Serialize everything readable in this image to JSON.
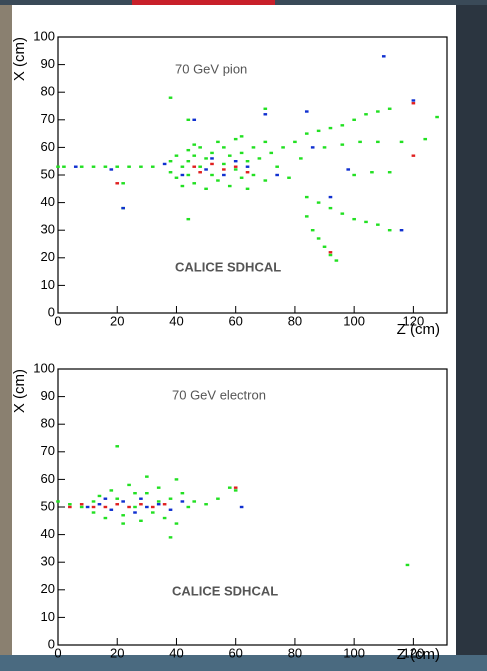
{
  "chart_data": [
    {
      "type": "scatter",
      "annotation": "70 GeV pion",
      "label": "CALICE SDHCAL",
      "xlabel": "Z (cm)",
      "ylabel": "X (cm)",
      "xlim": [
        0,
        130
      ],
      "ylim": [
        0,
        100
      ],
      "xticks": [
        0,
        20,
        40,
        60,
        80,
        100,
        120
      ],
      "yticks": [
        0,
        10,
        20,
        30,
        40,
        50,
        60,
        70,
        80,
        90,
        100
      ],
      "series": [
        {
          "color": "#22e022",
          "x": [
            0,
            2,
            8,
            12,
            16,
            20,
            24,
            28,
            32,
            38,
            38,
            40,
            40,
            42,
            42,
            44,
            44,
            44,
            46,
            46,
            46,
            48,
            48,
            50,
            50,
            52,
            52,
            54,
            54,
            56,
            56,
            58,
            58,
            60,
            60,
            62,
            62,
            64,
            64,
            66,
            66,
            68,
            70,
            70,
            72,
            74,
            76,
            78,
            80,
            82,
            84,
            88,
            92,
            96,
            100,
            104,
            108,
            112,
            84,
            88,
            92,
            96,
            100,
            104,
            108,
            112,
            84,
            86,
            88,
            90,
            92,
            94,
            90,
            96,
            102,
            108,
            116,
            100,
            106,
            112,
            124,
            128,
            38,
            44,
            70,
            62,
            44,
            22,
            22
          ],
          "y": [
            53,
            53,
            53,
            53,
            53,
            53,
            53,
            53,
            53,
            55,
            51,
            57,
            49,
            53,
            46,
            59,
            55,
            50,
            61,
            57,
            47,
            53,
            60,
            56,
            45,
            58,
            50,
            62,
            48,
            54,
            60,
            46,
            57,
            63,
            52,
            49,
            58,
            55,
            45,
            60,
            50,
            56,
            62,
            48,
            58,
            53,
            60,
            49,
            62,
            56,
            65,
            66,
            67,
            68,
            70,
            72,
            73,
            74,
            42,
            40,
            38,
            36,
            34,
            33,
            32,
            30,
            35,
            30,
            27,
            24,
            21,
            19,
            60,
            61,
            62,
            62,
            62,
            50,
            51,
            51,
            63,
            71,
            78,
            70,
            74,
            64,
            34,
            47,
            38
          ]
        },
        {
          "color": "#1030d0",
          "x": [
            6,
            18,
            22,
            46,
            50,
            52,
            56,
            60,
            64,
            70,
            74,
            84,
            92,
            110,
            120,
            86,
            98,
            116,
            42,
            36
          ],
          "y": [
            53,
            52,
            38,
            70,
            52,
            56,
            50,
            55,
            53,
            72,
            50,
            73,
            42,
            93,
            77,
            60,
            52,
            30,
            50,
            54
          ]
        },
        {
          "color": "#e02020",
          "x": [
            46,
            48,
            52,
            56,
            60,
            64,
            92,
            120,
            120,
            20
          ],
          "y": [
            53,
            51,
            54,
            52,
            53,
            51,
            22,
            76,
            57,
            47
          ]
        }
      ]
    },
    {
      "type": "scatter",
      "annotation": "70 GeV electron",
      "label": "CALICE SDHCAL",
      "xlabel": "Z (cm)",
      "ylabel": "X (cm)",
      "xlim": [
        0,
        130
      ],
      "ylim": [
        0,
        100
      ],
      "xticks": [
        0,
        20,
        40,
        60,
        80,
        100,
        120
      ],
      "yticks": [
        0,
        10,
        20,
        30,
        40,
        50,
        60,
        70,
        80,
        90,
        100
      ],
      "series": [
        {
          "color": "#22e022",
          "x": [
            0,
            4,
            8,
            12,
            14,
            16,
            18,
            20,
            20,
            22,
            24,
            26,
            28,
            30,
            30,
            32,
            34,
            36,
            38,
            38,
            40,
            40,
            42,
            44,
            46,
            50,
            54,
            58,
            60,
            118,
            22,
            26,
            34,
            12
          ],
          "y": [
            52,
            51,
            50,
            48,
            54,
            46,
            56,
            72,
            53,
            47,
            58,
            50,
            45,
            61,
            55,
            48,
            57,
            46,
            53,
            39,
            60,
            44,
            55,
            50,
            52,
            51,
            53,
            57,
            56,
            29,
            44,
            55,
            52,
            52
          ]
        },
        {
          "color": "#1030d0",
          "x": [
            10,
            14,
            18,
            22,
            26,
            30,
            34,
            38,
            42,
            62,
            16,
            28
          ],
          "y": [
            50,
            51,
            49,
            52,
            48,
            50,
            51,
            49,
            52,
            50,
            53,
            53
          ]
        },
        {
          "color": "#e02020",
          "x": [
            4,
            8,
            12,
            16,
            20,
            24,
            28,
            32,
            36,
            60
          ],
          "y": [
            50,
            51,
            50,
            50,
            51,
            50,
            51,
            50,
            51,
            57
          ]
        }
      ]
    }
  ]
}
